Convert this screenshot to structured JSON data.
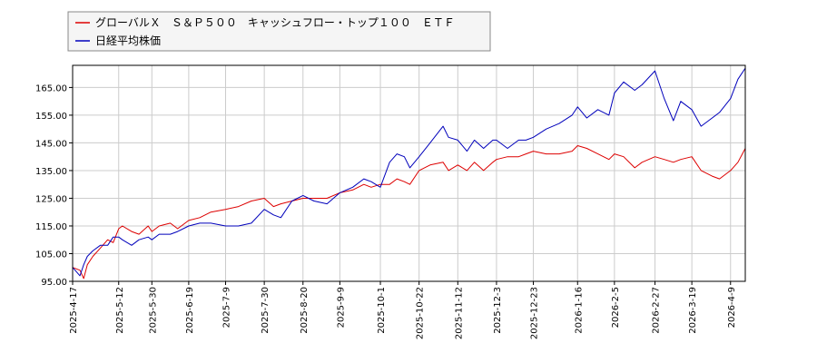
{
  "chart_data": {
    "type": "line",
    "title": "",
    "xlabel": "",
    "ylabel": "",
    "ylim": [
      95,
      173
    ],
    "yticks": [
      "95.00",
      "105.00",
      "115.00",
      "125.00",
      "135.00",
      "145.00",
      "155.00",
      "165.00"
    ],
    "xticks": [
      "2025-4-17",
      "2025-5-12",
      "2025-5-30",
      "2025-6-19",
      "2025-7-9",
      "2025-7-30",
      "2025-8-20",
      "2025-9-9",
      "2025-10-1",
      "2025-10-22",
      "2025-11-12",
      "2025-12-3",
      "2025-12-23",
      "2026-1-16",
      "2026-2-5",
      "2026-2-27",
      "2026-3-19",
      "2026-4-9"
    ],
    "grid": true,
    "legend_position": "top-left",
    "series": [
      {
        "name": "グローバルＸ　Ｓ＆Ｐ５００　キャッシュフロー・トップ１００　ＥＴＦ",
        "color": "#dd0000",
        "x": [
          "2025-4-17",
          "2025-4-21",
          "2025-4-23",
          "2025-4-25",
          "2025-4-28",
          "2025-5-2",
          "2025-5-6",
          "2025-5-9",
          "2025-5-12",
          "2025-5-14",
          "2025-5-19",
          "2025-5-23",
          "2025-5-28",
          "2025-5-30",
          "2025-6-3",
          "2025-6-9",
          "2025-6-13",
          "2025-6-19",
          "2025-6-25",
          "2025-7-1",
          "2025-7-9",
          "2025-7-16",
          "2025-7-23",
          "2025-7-30",
          "2025-8-4",
          "2025-8-8",
          "2025-8-14",
          "2025-8-20",
          "2025-8-26",
          "2025-9-2",
          "2025-9-9",
          "2025-9-16",
          "2025-9-22",
          "2025-9-26",
          "2025-10-1",
          "2025-10-6",
          "2025-10-10",
          "2025-10-14",
          "2025-10-17",
          "2025-10-22",
          "2025-10-28",
          "2025-11-4",
          "2025-11-7",
          "2025-11-12",
          "2025-11-17",
          "2025-11-21",
          "2025-11-26",
          "2025-12-1",
          "2025-12-3",
          "2025-12-9",
          "2025-12-15",
          "2025-12-19",
          "2025-12-23",
          "2025-12-30",
          "2026-1-6",
          "2026-1-13",
          "2026-1-16",
          "2026-1-21",
          "2026-1-27",
          "2026-2-2",
          "2026-2-5",
          "2026-2-10",
          "2026-2-16",
          "2026-2-20",
          "2026-2-27",
          "2026-3-4",
          "2026-3-9",
          "2026-3-13",
          "2026-3-19",
          "2026-3-24",
          "2026-3-30",
          "2026-4-3",
          "2026-4-9",
          "2026-4-13",
          "2026-4-17"
        ],
        "values": [
          100,
          99,
          96,
          101,
          104,
          107,
          110,
          109,
          114,
          115,
          113,
          112,
          115,
          113,
          115,
          116,
          114,
          117,
          118,
          120,
          121,
          122,
          124,
          125,
          122,
          123,
          124,
          125,
          125,
          125,
          127,
          128,
          130,
          129,
          130,
          130,
          132,
          131,
          130,
          135,
          137,
          138,
          135,
          137,
          135,
          138,
          135,
          138,
          139,
          140,
          140,
          141,
          142,
          141,
          141,
          142,
          144,
          143,
          141,
          139,
          141,
          140,
          136,
          138,
          140,
          139,
          138,
          139,
          140,
          135,
          133,
          132,
          135,
          138,
          143
        ]
      },
      {
        "name": "日経平均株価",
        "color": "#0000bb",
        "x": [
          "2025-4-17",
          "2025-4-21",
          "2025-4-23",
          "2025-4-25",
          "2025-4-28",
          "2025-5-2",
          "2025-5-6",
          "2025-5-9",
          "2025-5-12",
          "2025-5-14",
          "2025-5-19",
          "2025-5-23",
          "2025-5-28",
          "2025-5-30",
          "2025-6-3",
          "2025-6-9",
          "2025-6-13",
          "2025-6-19",
          "2025-6-25",
          "2025-7-1",
          "2025-7-9",
          "2025-7-16",
          "2025-7-23",
          "2025-7-30",
          "2025-8-4",
          "2025-8-8",
          "2025-8-14",
          "2025-8-20",
          "2025-8-26",
          "2025-9-2",
          "2025-9-9",
          "2025-9-16",
          "2025-9-22",
          "2025-9-26",
          "2025-10-1",
          "2025-10-6",
          "2025-10-10",
          "2025-10-14",
          "2025-10-17",
          "2025-10-22",
          "2025-10-28",
          "2025-11-4",
          "2025-11-7",
          "2025-11-12",
          "2025-11-17",
          "2025-11-21",
          "2025-11-26",
          "2025-12-1",
          "2025-12-3",
          "2025-12-9",
          "2025-12-15",
          "2025-12-19",
          "2025-12-23",
          "2025-12-30",
          "2026-1-6",
          "2026-1-13",
          "2026-1-16",
          "2026-1-21",
          "2026-1-27",
          "2026-2-2",
          "2026-2-5",
          "2026-2-10",
          "2026-2-16",
          "2026-2-20",
          "2026-2-27",
          "2026-3-4",
          "2026-3-9",
          "2026-3-13",
          "2026-3-19",
          "2026-3-24",
          "2026-3-30",
          "2026-4-3",
          "2026-4-9",
          "2026-4-13",
          "2026-4-17"
        ],
        "values": [
          100,
          97,
          101,
          104,
          106,
          108,
          108,
          111,
          111,
          110,
          108,
          110,
          111,
          110,
          112,
          112,
          113,
          115,
          116,
          116,
          115,
          115,
          116,
          121,
          119,
          118,
          124,
          126,
          124,
          123,
          127,
          129,
          132,
          131,
          129,
          138,
          141,
          140,
          136,
          140,
          145,
          151,
          147,
          146,
          142,
          146,
          143,
          146,
          146,
          143,
          146,
          146,
          147,
          150,
          152,
          155,
          158,
          154,
          157,
          155,
          163,
          167,
          164,
          166,
          171,
          161,
          153,
          160,
          157,
          151,
          154,
          156,
          161,
          168,
          172
        ]
      }
    ]
  }
}
